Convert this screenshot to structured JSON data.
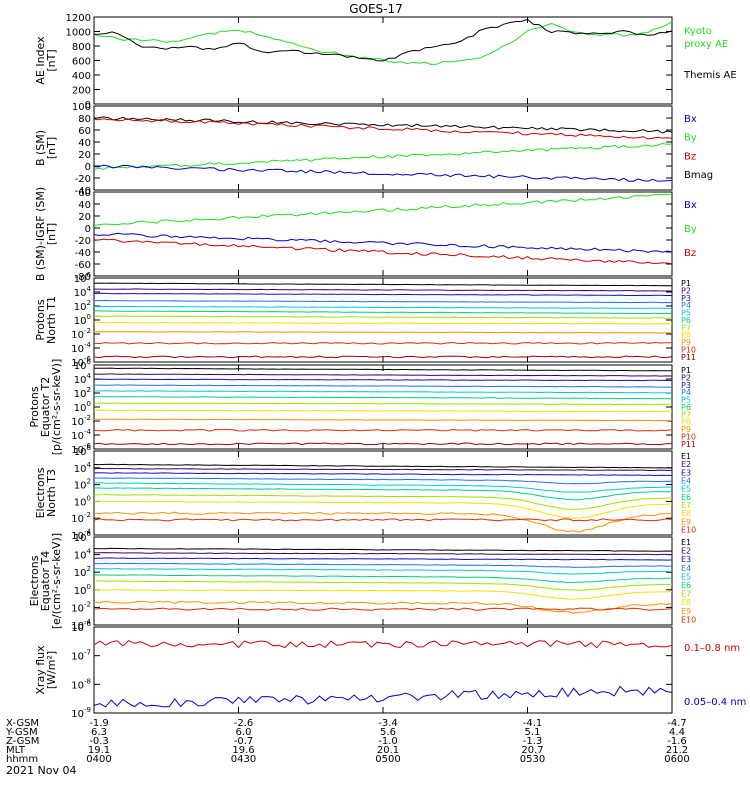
{
  "title": "GOES-17",
  "date": "2021 Nov 04",
  "colors": {
    "black": "#000000",
    "red": "#cc0000",
    "green": "#22dd22",
    "blue": "#0000cc",
    "channels": [
      "#000000",
      "#400060",
      "#1010c8",
      "#2070ff",
      "#00c8e0",
      "#00d080",
      "#a0e000",
      "#f0e000",
      "#ff9000",
      "#d83000",
      "#a00000"
    ]
  },
  "time_axis": {
    "ticks": [
      "0400",
      "0430",
      "0500",
      "0530",
      "0600"
    ],
    "rows": [
      {
        "label": "X-GSM",
        "values": [
          "-1.9",
          "-2.6",
          "-3.4",
          "-4.1",
          "-4.7"
        ]
      },
      {
        "label": "Y-GSM",
        "values": [
          "6.3",
          "6.0",
          "5.6",
          "5.1",
          "4.4"
        ]
      },
      {
        "label": "Z-GSM",
        "values": [
          "-0.3",
          "-0.7",
          "-1.0",
          "-1.3",
          "-1.6"
        ]
      },
      {
        "label": "MLT",
        "values": [
          "19.1",
          "19.6",
          "20.1",
          "20.7",
          "21.2"
        ]
      },
      {
        "label": "hhmm",
        "values": [
          "0400",
          "0430",
          "0500",
          "0530",
          "0600"
        ]
      }
    ]
  },
  "panels": [
    {
      "ylabel": [
        "AE Index",
        "[nT]"
      ],
      "yticks": [
        "1200",
        "1000",
        "800",
        "600",
        "400",
        "200",
        "0"
      ],
      "legend": [
        {
          "text": "Kyoto",
          "color": "#22dd22"
        },
        {
          "text": "proxy AE",
          "color": "#22dd22"
        },
        {
          "text": "Themis AE",
          "color": "#000000"
        }
      ]
    },
    {
      "ylabel": [
        "B (SM)",
        "[nT]"
      ],
      "yticks": [
        "100",
        "80",
        "60",
        "40",
        "20",
        "0",
        "-20",
        "-40"
      ],
      "legend": [
        {
          "text": "Bx",
          "color": "#0000cc"
        },
        {
          "text": "By",
          "color": "#22dd22"
        },
        {
          "text": "Bz",
          "color": "#cc0000"
        },
        {
          "text": "Bmag",
          "color": "#000000"
        }
      ]
    },
    {
      "ylabel": [
        "B (SM)-IGRF (SM)",
        "[nT]"
      ],
      "yticks": [
        "60",
        "40",
        "20",
        "0",
        "-20",
        "-40",
        "-60",
        "-80"
      ],
      "legend": [
        {
          "text": "Bx",
          "color": "#0000cc"
        },
        {
          "text": "By",
          "color": "#22dd22"
        },
        {
          "text": "Bz",
          "color": "#cc0000"
        }
      ]
    },
    {
      "ylabel": [
        "Protons",
        "North T1"
      ],
      "yticks": [
        "10^6",
        "10^4",
        "10^2",
        "10^0",
        "10^-2",
        "10^-4",
        "10^-6"
      ],
      "channels": [
        "P1",
        "P2",
        "P3",
        "P4",
        "P5",
        "P6",
        "P7",
        "P8",
        "P9",
        "P10",
        "P11"
      ]
    },
    {
      "ylabel": [
        "Protons",
        "Equator T2",
        "[p/(cm²-s-sr-keV)]"
      ],
      "yticks": [
        "10^6",
        "10^4",
        "10^2",
        "10^0",
        "10^-2",
        "10^-4",
        "10^-6"
      ],
      "channels": [
        "P1",
        "P2",
        "P3",
        "P4",
        "P5",
        "P6",
        "P7",
        "P8",
        "P9",
        "P10",
        "P11"
      ]
    },
    {
      "ylabel": [
        "Electrons",
        "North T3"
      ],
      "yticks": [
        "10^6",
        "10^4",
        "10^2",
        "10^0",
        "10^-2",
        "10^-4"
      ],
      "channels": [
        "E1",
        "E2",
        "E3",
        "E4",
        "E5",
        "E6",
        "E7",
        "E8",
        "E9",
        "E10"
      ]
    },
    {
      "ylabel": [
        "Electrons",
        "Equator T4",
        "[e/(cm²-s-sr-keV)]"
      ],
      "yticks": [
        "10^6",
        "10^4",
        "10^2",
        "10^0",
        "10^-2",
        "10^-4"
      ],
      "channels": [
        "E1",
        "E2",
        "E3",
        "E4",
        "E5",
        "E6",
        "E7",
        "E8",
        "E9",
        "E10"
      ]
    },
    {
      "ylabel": [
        "Xray flux",
        "[W/m²]"
      ],
      "yticks": [
        "10^-6",
        "10^-7",
        "10^-8",
        "10^-9"
      ],
      "legend": [
        {
          "text": "0.1–0.8 nm",
          "color": "#cc0000"
        },
        {
          "text": "0.05–0.4 nm",
          "color": "#0000cc"
        }
      ]
    }
  ],
  "chart_data": {
    "type": "line",
    "x_range": [
      "0400",
      "0600"
    ],
    "panels": [
      {
        "name": "AE Index",
        "ylim": [
          0,
          1200
        ],
        "x": [
          "0400",
          "0405",
          "0410",
          "0415",
          "0420",
          "0425",
          "0430",
          "0435",
          "0440",
          "0445",
          "0450",
          "0455",
          "0500",
          "0505",
          "0510",
          "0515",
          "0520",
          "0525",
          "0530",
          "0535",
          "0540",
          "0545",
          "0550",
          "0555",
          "0600"
        ],
        "series": [
          {
            "name": "Kyoto proxy AE",
            "color": "#22dd22",
            "values": [
              950,
              900,
              880,
              860,
              900,
              980,
              1020,
              950,
              850,
              750,
              700,
              640,
              600,
              560,
              560,
              580,
              640,
              800,
              1000,
              1100,
              980,
              950,
              950,
              980,
              1130
            ]
          },
          {
            "name": "Themis AE",
            "color": "#000000",
            "values": [
              960,
              980,
              780,
              760,
              800,
              740,
              840,
              720,
              740,
              700,
              680,
              640,
              600,
              700,
              800,
              820,
              1000,
              1100,
              1150,
              1000,
              980,
              980,
              1000,
              960,
              1000
            ]
          }
        ]
      },
      {
        "name": "B (SM)",
        "ylim": [
          -40,
          100
        ],
        "series": [
          {
            "name": "Bmag",
            "color": "#000000",
            "start": 80,
            "end": 57
          },
          {
            "name": "Bz",
            "color": "#cc0000",
            "start": 79,
            "end": 46
          },
          {
            "name": "By",
            "color": "#22dd22",
            "start": -5,
            "end": 36
          },
          {
            "name": "Bx",
            "color": "#0000cc",
            "start": 0,
            "end": -25
          }
        ]
      },
      {
        "name": "B (SM)-IGRF (SM)",
        "ylim": [
          -80,
          60
        ],
        "series": [
          {
            "name": "By",
            "color": "#22dd22",
            "start": 5,
            "end": 55
          },
          {
            "name": "Bx",
            "color": "#0000cc",
            "start": -10,
            "end": -40
          },
          {
            "name": "Bz",
            "color": "#cc0000",
            "start": -20,
            "end": -60
          }
        ]
      },
      {
        "name": "Protons North T1",
        "scale": "log",
        "ylim_exp": [
          -7,
          6
        ],
        "series_log10": [
          {
            "name": "P1",
            "start": 5.2,
            "end": 4.8
          },
          {
            "name": "P2",
            "start": 4.3,
            "end": 4.0
          },
          {
            "name": "P3",
            "start": 3.6,
            "end": 3.3
          },
          {
            "name": "P4",
            "start": 2.5,
            "end": 2.2
          },
          {
            "name": "P5",
            "start": 1.6,
            "end": 1.3
          },
          {
            "name": "P6",
            "start": 0.9,
            "end": 0.5
          },
          {
            "name": "P7",
            "start": 0.1,
            "end": -0.2
          },
          {
            "name": "P8",
            "start": -0.9,
            "end": -1.1
          },
          {
            "name": "P9",
            "start": -2.3,
            "end": -2.5
          },
          {
            "name": "P10",
            "start": -4.1,
            "end": -4.1
          },
          {
            "name": "P11",
            "start": -6.2,
            "end": -6.2
          }
        ]
      },
      {
        "name": "Protons Equator T2",
        "scale": "log",
        "ylim_exp": [
          -7,
          6
        ],
        "series_log10": [
          {
            "name": "P1",
            "start": 5.5,
            "end": 5.1
          },
          {
            "name": "P2",
            "start": 4.6,
            "end": 4.3
          },
          {
            "name": "P3",
            "start": 3.8,
            "end": 3.6
          },
          {
            "name": "P4",
            "start": 2.9,
            "end": 2.6
          },
          {
            "name": "P5",
            "start": 2.0,
            "end": 1.7
          },
          {
            "name": "P6",
            "start": 1.1,
            "end": 0.8
          },
          {
            "name": "P7",
            "start": 0.1,
            "end": -0.1
          },
          {
            "name": "P8",
            "start": -1.0,
            "end": -1.2
          },
          {
            "name": "P9",
            "start": -2.4,
            "end": -2.6
          },
          {
            "name": "P10",
            "start": -4.1,
            "end": -4.1
          },
          {
            "name": "P11",
            "start": -6.2,
            "end": -6.2
          }
        ]
      },
      {
        "name": "Electrons North T3",
        "scale": "log",
        "ylim_exp": [
          -4,
          6
        ],
        "series_log10": [
          {
            "name": "E1",
            "start": 4.4,
            "end": 4.0
          },
          {
            "name": "E2",
            "start": 3.9,
            "end": 3.7
          },
          {
            "name": "E3",
            "start": 3.4,
            "end": 3.1
          },
          {
            "name": "E4",
            "start": 2.8,
            "end": 2.4
          },
          {
            "name": "E5",
            "start": 2.2,
            "end": 1.7
          },
          {
            "name": "E6",
            "start": 1.6,
            "end": 1.2
          },
          {
            "name": "E7",
            "start": 0.8,
            "end": 0.4
          },
          {
            "name": "E8",
            "start": 0.0,
            "end": -0.3
          },
          {
            "name": "E9",
            "start": -1.4,
            "end": -1.5
          },
          {
            "name": "E10",
            "start": -2.2,
            "end": -2.2
          }
        ]
      },
      {
        "name": "Electrons Equator T4",
        "scale": "log",
        "ylim_exp": [
          -4,
          6
        ],
        "series_log10": [
          {
            "name": "E1",
            "start": 4.7,
            "end": 4.4
          },
          {
            "name": "E2",
            "start": 4.2,
            "end": 4.0
          },
          {
            "name": "E3",
            "start": 3.6,
            "end": 3.4
          },
          {
            "name": "E4",
            "start": 3.0,
            "end": 2.7
          },
          {
            "name": "E5",
            "start": 2.4,
            "end": 2.1
          },
          {
            "name": "E6",
            "start": 1.7,
            "end": 1.3
          },
          {
            "name": "E7",
            "start": 1.0,
            "end": 0.6
          },
          {
            "name": "E8",
            "start": 0.0,
            "end": -0.2
          },
          {
            "name": "E9",
            "start": -1.4,
            "end": -1.6
          },
          {
            "name": "E10",
            "start": -2.2,
            "end": -2.2
          }
        ]
      },
      {
        "name": "Xray flux",
        "scale": "log",
        "ylim_exp": [
          -9,
          -6
        ],
        "series_log10": [
          {
            "name": "0.1-0.8 nm",
            "color": "#cc0000",
            "start": -6.6,
            "end": -6.6
          },
          {
            "name": "0.05-0.4 nm",
            "color": "#0000cc",
            "start": -8.7,
            "end": -8.2
          }
        ]
      }
    ]
  }
}
